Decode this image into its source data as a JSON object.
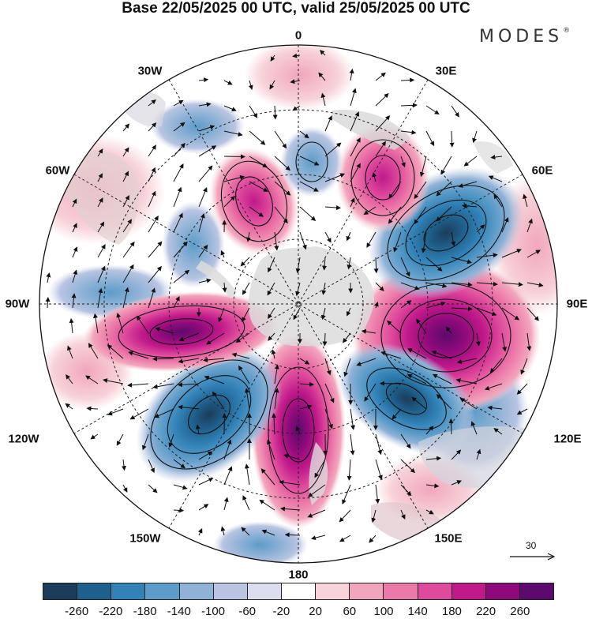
{
  "title": "Base 22/05/2025 00 UTC, valid 25/05/2025 00 UTC",
  "logo": "MODES",
  "logo_mark": "®",
  "longitude_labels": {
    "top": "0",
    "top_left": "30W",
    "top_right": "30E",
    "upper_left": "60W",
    "upper_right": "60E",
    "left": "90W",
    "right": "90E",
    "lower_left": "120W",
    "lower_right": "120E",
    "bottom_left": "150W",
    "bottom_right": "150E",
    "bottom": "180"
  },
  "reference_vector": "30",
  "colorbar": {
    "colors": [
      "#1b3c5a",
      "#1f5f8b",
      "#3282b8",
      "#5d9cc9",
      "#8fb2d6",
      "#b8c4e2",
      "#dcdcef",
      "#ffffff",
      "#f7d2d8",
      "#f2a6bd",
      "#ec7aa9",
      "#de4a9c",
      "#c0198a",
      "#8e0a7a",
      "#5c0a6e"
    ],
    "tick_labels": [
      "-260",
      "-220",
      "-180",
      "-140",
      "-100",
      "-60",
      "-20",
      "20",
      "60",
      "100",
      "140",
      "180",
      "220",
      "260"
    ]
  },
  "anomaly_centers": [
    {
      "lon_label": "90E",
      "sign": "positive",
      "intensity": "strong"
    },
    {
      "lon_label": "60E",
      "sign": "negative",
      "intensity": "strong"
    },
    {
      "lon_label": "30E",
      "sign": "positive",
      "intensity": "moderate"
    },
    {
      "lon_label": "120E",
      "sign": "negative",
      "intensity": "strong"
    },
    {
      "lon_label": "180",
      "sign": "positive",
      "intensity": "strong"
    },
    {
      "lon_label": "120W",
      "sign": "negative",
      "intensity": "strong"
    },
    {
      "lon_label": "90W",
      "sign": "positive",
      "intensity": "strong"
    },
    {
      "lon_label": "30W",
      "sign": "positive",
      "intensity": "moderate"
    },
    {
      "lon_label": "0",
      "sign": "negative",
      "intensity": "weak"
    }
  ]
}
